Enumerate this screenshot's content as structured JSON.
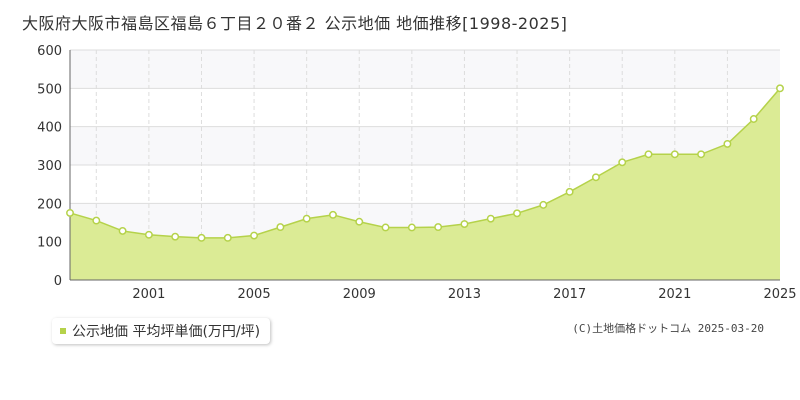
{
  "title": "大阪府大阪市福島区福島６丁目２０番２ 公示地価 地価推移[1998-2025]",
  "legend": {
    "label": "公示地価 平均坪単価(万円/坪)",
    "color": "#b5d24a"
  },
  "credit": "(C)土地価格ドットコム 2025-03-20",
  "colors": {
    "area_fill": "#dbeb95",
    "line": "#b5d24a",
    "band": "#f8f8fa",
    "grid": "#dddddd"
  },
  "chart_data": {
    "type": "area",
    "title": "大阪府大阪市福島区福島６丁目２０番２ 公示地価 地価推移[1998-2025]",
    "xlabel": "",
    "ylabel": "",
    "x": [
      1998,
      1999,
      2000,
      2001,
      2002,
      2003,
      2004,
      2005,
      2006,
      2007,
      2008,
      2009,
      2010,
      2011,
      2012,
      2013,
      2014,
      2015,
      2016,
      2017,
      2018,
      2019,
      2020,
      2021,
      2022,
      2023,
      2024,
      2025
    ],
    "series": [
      {
        "name": "公示地価 平均坪単価(万円/坪)",
        "values": [
          175,
          155,
          128,
          118,
          113,
          110,
          110,
          116,
          138,
          160,
          170,
          152,
          137,
          137,
          138,
          146,
          160,
          174,
          196,
          230,
          268,
          307,
          328,
          328,
          328,
          355,
          420,
          500
        ]
      }
    ],
    "xticks": [
      "2001",
      "2005",
      "2009",
      "2013",
      "2017",
      "2021",
      "2025"
    ],
    "yticks": [
      "0",
      "100",
      "200",
      "300",
      "400",
      "500",
      "600"
    ],
    "xlim": [
      1998,
      2025
    ],
    "ylim": [
      0,
      600
    ],
    "grid": true,
    "legend_position": "bottom-left"
  }
}
